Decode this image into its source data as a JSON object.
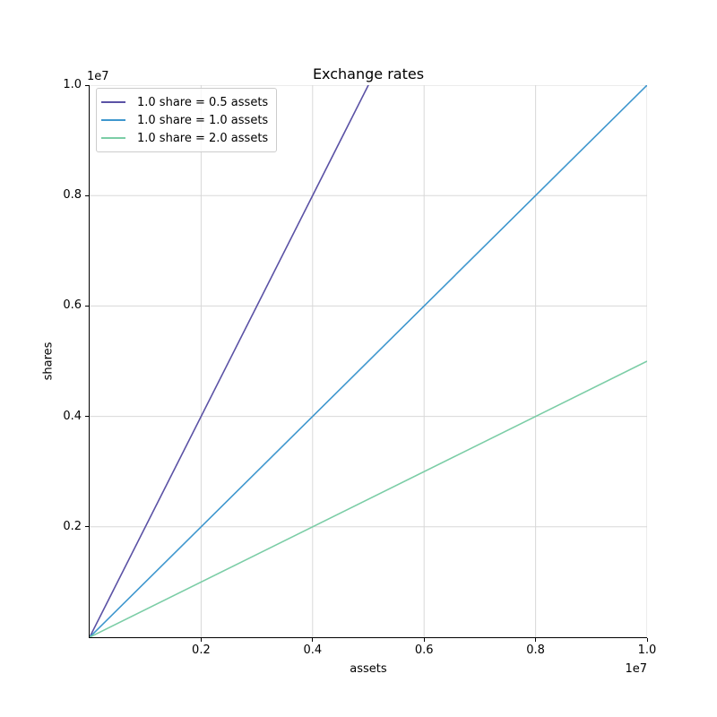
{
  "chart_data": {
    "type": "line",
    "title": "Exchange rates",
    "xlabel": "assets",
    "ylabel": "shares",
    "xlim": [
      0,
      10000000
    ],
    "ylim": [
      0,
      10000000
    ],
    "grid": true,
    "legend_position": "upper left",
    "x_offset_text": "1e7",
    "y_offset_text": "1e7",
    "xticks": {
      "values": [
        2000000,
        4000000,
        6000000,
        8000000,
        10000000
      ],
      "labels": [
        "0.2",
        "0.4",
        "0.6",
        "0.8",
        "1.0"
      ]
    },
    "yticks": {
      "values": [
        2000000,
        4000000,
        6000000,
        8000000,
        10000000
      ],
      "labels": [
        "0.2",
        "0.4",
        "0.6",
        "0.8",
        "1.0"
      ]
    },
    "grid_color": "#d8d8d8",
    "series": [
      {
        "name": "1.0 share = 0.5 assets",
        "color": "#5b52a5",
        "points": [
          [
            0,
            0
          ],
          [
            10000000,
            20000000
          ]
        ]
      },
      {
        "name": "1.0 share = 1.0 assets",
        "color": "#3f97ce",
        "points": [
          [
            0,
            0
          ],
          [
            10000000,
            10000000
          ]
        ]
      },
      {
        "name": "1.0 share = 2.0 assets",
        "color": "#7bcda6",
        "points": [
          [
            0,
            0
          ],
          [
            10000000,
            5000000
          ]
        ]
      }
    ]
  }
}
